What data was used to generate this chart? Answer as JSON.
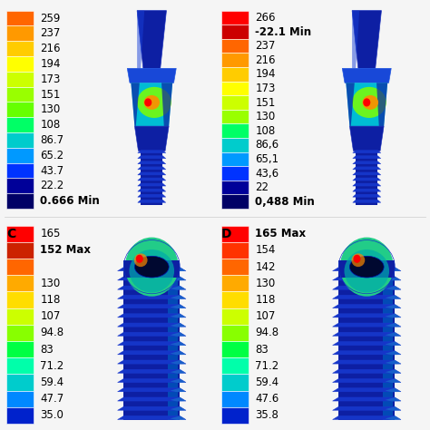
{
  "bg_color": "#f5f5f5",
  "label_fontsize": 8.5,
  "panel_label_fontsize": 10,
  "panel_A": {
    "colorbar_labels": [
      "259",
      "237",
      "216",
      "194",
      "173",
      "151",
      "130",
      "108",
      "86.7",
      "65.2",
      "43.7",
      "22.2",
      "0.666 Min"
    ],
    "colorbar_colors": [
      "#ff6600",
      "#ff9900",
      "#ffcc00",
      "#ffff00",
      "#ccff00",
      "#99ff00",
      "#66ff00",
      "#00ff66",
      "#00cccc",
      "#0099ff",
      "#0033ff",
      "#000099",
      "#000066"
    ]
  },
  "panel_B": {
    "colorbar_labels": [
      "266",
      "-22.1 Min",
      "237",
      "216",
      "194",
      "173",
      "151",
      "130",
      "108",
      "86,6",
      "65,1",
      "43,6",
      "22",
      "0,488 Min"
    ],
    "colorbar_colors": [
      "#ff0000",
      "#cc0000",
      "#ff6600",
      "#ff9900",
      "#ffcc00",
      "#ffff00",
      "#ccff00",
      "#99ff00",
      "#00ff66",
      "#00cccc",
      "#0099ff",
      "#0033ff",
      "#000099",
      "#000066"
    ]
  },
  "panel_C": {
    "colorbar_labels": [
      "165",
      "152 Max",
      "",
      "130",
      "118",
      "107",
      "94.8",
      "83",
      "71.2",
      "59.4",
      "47.7",
      "35.0"
    ],
    "colorbar_colors": [
      "#ff0000",
      "#cc2200",
      "#ff6600",
      "#ffaa00",
      "#ffdd00",
      "#ccff00",
      "#88ff00",
      "#00ff44",
      "#00ffaa",
      "#00cccc",
      "#0088ff",
      "#0022cc"
    ]
  },
  "panel_D": {
    "colorbar_labels": [
      "165 Max",
      "154",
      "142",
      "130",
      "118",
      "107",
      "94.8",
      "83",
      "71.2",
      "59.4",
      "47.6",
      "35.8"
    ],
    "colorbar_colors": [
      "#ff0000",
      "#ff3300",
      "#ff6600",
      "#ffaa00",
      "#ffdd00",
      "#ccff00",
      "#88ff00",
      "#00ff44",
      "#00ffaa",
      "#00cccc",
      "#0088ff",
      "#0022cc"
    ]
  }
}
